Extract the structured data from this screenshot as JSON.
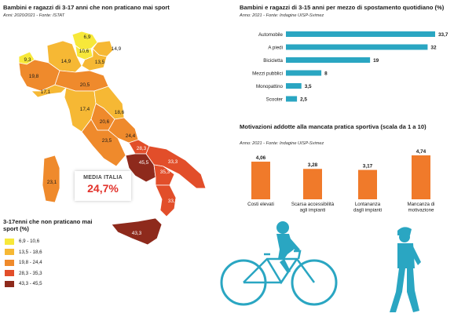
{
  "colors": {
    "bin1": "#f7e83a",
    "bin2": "#f6b834",
    "bin3": "#ef8a2c",
    "bin4": "#e24e2a",
    "bin5": "#8e2a1c",
    "teal": "#2aa6c2",
    "orange": "#f07a2a",
    "media_red": "#e2322b"
  },
  "map_panel": {
    "title": "Bambini e ragazzi di 3-17 anni che non praticano mai sport",
    "source": "Anni: 2020/2021 - Fonte: ISTAT",
    "media_label": "MEDIA ITALIA",
    "media_value": "24,7%",
    "legend_title": "3-17enni che non praticano mai sport (%)",
    "legend": [
      {
        "label": "6,9 - 10,6",
        "color": "#f7e83a"
      },
      {
        "label": "13,5 - 18,6",
        "color": "#f6b834"
      },
      {
        "label": "19,8 - 24,4",
        "color": "#ef8a2c"
      },
      {
        "label": "28,3 - 35,3",
        "color": "#e24e2a"
      },
      {
        "label": "43,3 - 45,5",
        "color": "#8e2a1c"
      }
    ],
    "regions": [
      {
        "name": "Trentino-Alto Adige",
        "value": "6,9",
        "bin": 1
      },
      {
        "name": "Friuli-Venezia Giulia",
        "value": "14,9",
        "bin": 2
      },
      {
        "name": "Veneto",
        "value": "13,5",
        "bin": 2
      },
      {
        "name": "Lombardia",
        "value": "14,9",
        "bin": 2
      },
      {
        "name": "Valle d'Aosta",
        "value": "9,3",
        "bin": 1
      },
      {
        "name": "Piemonte",
        "value": "19,8",
        "bin": 3
      },
      {
        "name": "Emilia-Romagna",
        "value": "20,5",
        "bin": 3
      },
      {
        "name": "Liguria",
        "value": "17,1",
        "bin": 2
      },
      {
        "name": "Toscana",
        "value": "17,4",
        "bin": 2
      },
      {
        "name": "Marche",
        "value": "18,6",
        "bin": 2
      },
      {
        "name": "Umbria",
        "value": "20,6",
        "bin": 3
      },
      {
        "name": "Lazio",
        "value": "23,5",
        "bin": 3
      },
      {
        "name": "Abruzzo",
        "value": "24,4",
        "bin": 3
      },
      {
        "name": "Molise",
        "value": "28,3",
        "bin": 4
      },
      {
        "name": "Campania",
        "value": "45,5",
        "bin": 5
      },
      {
        "name": "Puglia",
        "value": "33,3",
        "bin": 4
      },
      {
        "name": "Basilicata",
        "value": "35,3",
        "bin": 4
      },
      {
        "name": "Calabria",
        "value": "33,3",
        "bin": 4
      },
      {
        "name": "Sicilia",
        "value": "43,3",
        "bin": 5
      },
      {
        "name": "Sardegna",
        "value": "23,1",
        "bin": 3
      },
      {
        "name": "Bolzano",
        "value": "10,6",
        "bin": 1
      }
    ]
  },
  "chart_data": [
    {
      "type": "bar",
      "orientation": "horizontal",
      "title": "Bambini e ragazzi di 3-15 anni per mezzo di spostamento quotidiano (%)",
      "subtitle": "Anno: 2021 - Fonte: Indagine UISP-Svimez",
      "categories": [
        "Automobile",
        "A piedi",
        "Bicicletta",
        "Mezzi pubblici",
        "Monopattino",
        "Scooter"
      ],
      "values": [
        33.7,
        32,
        19,
        8,
        3.5,
        2.5
      ],
      "value_labels": [
        "33,7",
        "32",
        "19",
        "8",
        "3,5",
        "2,5"
      ],
      "xlim": [
        0,
        33.7
      ]
    },
    {
      "type": "bar",
      "orientation": "vertical",
      "title": "Motivazioni addotte alla mancata pratica sportiva (scala da 1 a 10)",
      "subtitle": "Anno: 2021 - Fonte: Indagine UISP-Svimez",
      "categories": [
        "Costi elevati",
        "Scarsa accessibilità agli impianti",
        "Lontananza dagli impianti",
        "Mancanza di motivazione"
      ],
      "category_lines": [
        [
          "Costi elevati"
        ],
        [
          "Scarsa accessibilità",
          "agli impianti"
        ],
        [
          "Lontananza",
          "dagli impianti"
        ],
        [
          "Mancanza di",
          "motivazione"
        ]
      ],
      "values": [
        4.06,
        3.28,
        3.17,
        4.74
      ],
      "value_labels": [
        "4,06",
        "3,28",
        "3,17",
        "4,74"
      ],
      "ylim": [
        0,
        4.74
      ]
    }
  ]
}
